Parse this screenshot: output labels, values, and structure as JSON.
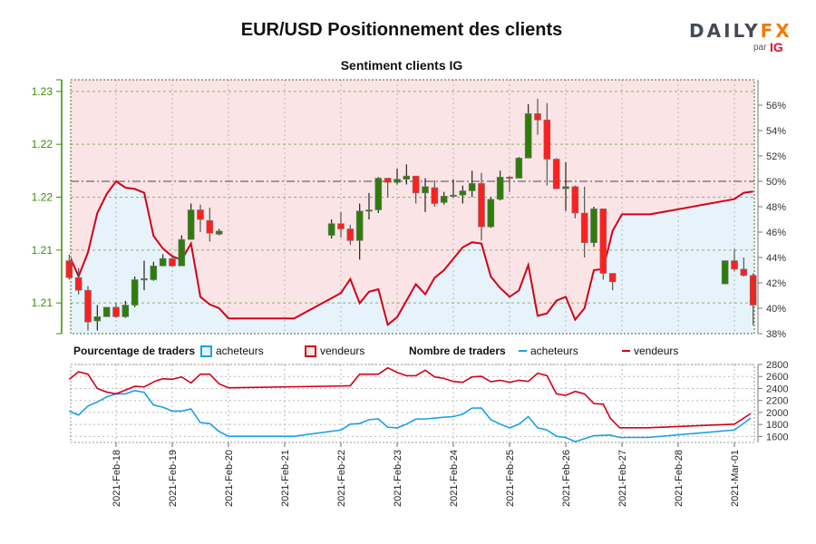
{
  "header": {
    "title": "EUR/USD Positionnement des clients",
    "subtitle": "Sentiment clients IG",
    "logo_text": "DAILYFX",
    "logo_sub": "par",
    "logo_brand": "IG"
  },
  "legend": {
    "pct_title": "Pourcentage de traders",
    "pct_buyers": "acheteurs",
    "pct_sellers": "vendeurs",
    "count_title": "Nombre de traders",
    "count_buyers": "acheteurs",
    "count_sellers": "vendeurs"
  },
  "colors": {
    "bull": "#2e7d0b",
    "bear": "#ff1f1f",
    "sentiment_line": "#d3001a",
    "buyers_fill": "#e6f3fb",
    "sellers_fill": "#fbe4e5",
    "buyers_line": "#1aa0e8",
    "sellers_line": "#d3001a",
    "price_axis": "#3c8c00"
  },
  "chart_data": [
    {
      "type": "candlestick",
      "title": "Sentiment clients IG",
      "x_unit": "hours since 2021-02-17 00:00",
      "price_axis": {
        "ticks": [
          1.225,
          1.22,
          1.215,
          1.21,
          1.205
        ],
        "tick_labels": [
          "1.23",
          "1.22",
          "1.22",
          "1.21",
          "1.21"
        ],
        "ylim": [
          1.2021,
          1.2261
        ]
      },
      "pct_axis": {
        "ticks": [
          56,
          54,
          52,
          50,
          48,
          46,
          44,
          42,
          40,
          38
        ],
        "tick_labels": [
          "56%",
          "54%",
          "52%",
          "50%",
          "48%",
          "46%",
          "44%",
          "42%",
          "40%",
          "38%"
        ],
        "ylim": [
          38,
          58
        ]
      },
      "reference_line_pct": 50,
      "x_tick_labels": [
        "2021-Feb-18",
        "2021-Feb-19",
        "2021-Feb-20",
        "2021-Feb-21",
        "2021-Feb-22",
        "2021-Feb-23",
        "2021-Feb-24",
        "2021-Feb-25",
        "2021-Feb-26",
        "2021-Feb-27",
        "2021-Feb-28",
        "2021-Mar-01"
      ],
      "candles_t_o_h_l_c": [
        [
          4,
          1.209,
          1.2096,
          1.2072,
          1.2074
        ],
        [
          8,
          1.2074,
          1.2083,
          1.2058,
          1.2062
        ],
        [
          12,
          1.2062,
          1.2066,
          1.2024,
          1.2032
        ],
        [
          16,
          1.2033,
          1.2048,
          1.2024,
          1.2037
        ],
        [
          20,
          1.2037,
          1.2046,
          1.2037,
          1.2046
        ],
        [
          24,
          1.2046,
          1.205,
          1.2036,
          1.2037
        ],
        [
          28,
          1.2037,
          1.2052,
          1.2036,
          1.2048
        ],
        [
          32,
          1.2048,
          1.2075,
          1.2046,
          1.2072
        ],
        [
          36,
          1.2072,
          1.209,
          1.2062,
          1.2073
        ],
        [
          40,
          1.2072,
          1.2089,
          1.2071,
          1.2085
        ],
        [
          44,
          1.2085,
          1.2096,
          1.2085,
          1.2092
        ],
        [
          48,
          1.2092,
          1.2096,
          1.2084,
          1.2085
        ],
        [
          52,
          1.2085,
          1.2114,
          1.2085,
          1.211
        ],
        [
          56,
          1.211,
          1.2144,
          1.211,
          1.2138
        ],
        [
          60,
          1.2138,
          1.2143,
          1.2117,
          1.2129
        ],
        [
          64,
          1.2128,
          1.214,
          1.2108,
          1.2116
        ],
        [
          68,
          1.2115,
          1.212,
          1.2114,
          1.2118
        ],
        [
          116,
          1.2114,
          1.2129,
          1.2111,
          1.2125
        ],
        [
          120,
          1.2125,
          1.2136,
          1.2112,
          1.212
        ],
        [
          124,
          1.212,
          1.2124,
          1.2105,
          1.2109
        ],
        [
          128,
          1.2109,
          1.2144,
          1.2091,
          1.2137
        ],
        [
          132,
          1.2137,
          1.2154,
          1.2129,
          1.2138
        ],
        [
          136,
          1.2138,
          1.2169,
          1.2135,
          1.2168
        ],
        [
          140,
          1.2168,
          1.2168,
          1.215,
          1.2164
        ],
        [
          144,
          1.2164,
          1.2177,
          1.2162,
          1.2167
        ],
        [
          148,
          1.2167,
          1.2181,
          1.2162,
          1.217
        ],
        [
          152,
          1.217,
          1.217,
          1.2144,
          1.2154
        ],
        [
          156,
          1.2154,
          1.2168,
          1.2136,
          1.216
        ],
        [
          160,
          1.2159,
          1.2166,
          1.2141,
          1.2144
        ],
        [
          164,
          1.2145,
          1.2155,
          1.2143,
          1.2151
        ],
        [
          168,
          1.2151,
          1.2167,
          1.215,
          1.2152
        ],
        [
          172,
          1.2152,
          1.2161,
          1.2144,
          1.2156
        ],
        [
          176,
          1.2156,
          1.2175,
          1.215,
          1.2163
        ],
        [
          180,
          1.2163,
          1.2173,
          1.2109,
          1.2122
        ],
        [
          184,
          1.2122,
          1.215,
          1.2121,
          1.2148
        ],
        [
          188,
          1.2148,
          1.2175,
          1.2147,
          1.2169
        ],
        [
          192,
          1.2169,
          1.217,
          1.2155,
          1.2168
        ],
        [
          196,
          1.2168,
          1.2188,
          1.2168,
          1.2187
        ],
        [
          200,
          1.2187,
          1.2238,
          1.2187,
          1.2229
        ],
        [
          204,
          1.2229,
          1.2243,
          1.2209,
          1.2223
        ],
        [
          208,
          1.2223,
          1.2239,
          1.2161,
          1.2186
        ],
        [
          212,
          1.2186,
          1.2187,
          1.2158,
          1.2158
        ],
        [
          216,
          1.2158,
          1.2183,
          1.2137,
          1.216
        ],
        [
          220,
          1.216,
          1.2161,
          1.213,
          1.2135
        ],
        [
          224,
          1.2135,
          1.216,
          1.2093,
          1.2107
        ],
        [
          228,
          1.2107,
          1.2141,
          1.2103,
          1.2139
        ],
        [
          232,
          1.2139,
          1.2139,
          1.2072,
          1.2078
        ],
        [
          236,
          1.2078,
          1.2078,
          1.2062,
          1.207
        ],
        [
          284,
          1.2068,
          1.209,
          1.2068,
          1.209
        ],
        [
          288,
          1.209,
          1.2101,
          1.208,
          1.2082
        ],
        [
          292,
          1.2082,
          1.2093,
          1.2075,
          1.2076
        ],
        [
          296,
          1.2076,
          1.2078,
          1.2029,
          1.2048
        ]
      ],
      "buyers_pct_t_v": [
        [
          4,
          44.2
        ],
        [
          8,
          42.5
        ],
        [
          12,
          44.4
        ],
        [
          16,
          47.5
        ],
        [
          20,
          49.0
        ],
        [
          24,
          50.0
        ],
        [
          28,
          49.5
        ],
        [
          32,
          49.4
        ],
        [
          36,
          49.1
        ],
        [
          40,
          45.7
        ],
        [
          44,
          44.7
        ],
        [
          48,
          44.1
        ],
        [
          52,
          43.8
        ],
        [
          56,
          45.1
        ],
        [
          60,
          40.9
        ],
        [
          64,
          40.3
        ],
        [
          68,
          40.0
        ],
        [
          72,
          39.2
        ],
        [
          100,
          39.2
        ],
        [
          120,
          41.2
        ],
        [
          124,
          42.3
        ],
        [
          128,
          40.4
        ],
        [
          132,
          41.3
        ],
        [
          136,
          41.5
        ],
        [
          140,
          38.7
        ],
        [
          144,
          39.3
        ],
        [
          148,
          40.6
        ],
        [
          152,
          41.9
        ],
        [
          156,
          41.1
        ],
        [
          160,
          42.4
        ],
        [
          164,
          43.0
        ],
        [
          168,
          43.9
        ],
        [
          172,
          44.8
        ],
        [
          176,
          45.2
        ],
        [
          180,
          45.1
        ],
        [
          184,
          42.5
        ],
        [
          188,
          41.6
        ],
        [
          192,
          40.9
        ],
        [
          196,
          41.4
        ],
        [
          200,
          43.4
        ],
        [
          204,
          39.4
        ],
        [
          208,
          39.6
        ],
        [
          212,
          40.6
        ],
        [
          216,
          40.9
        ],
        [
          220,
          39.1
        ],
        [
          224,
          40.0
        ],
        [
          228,
          43.0
        ],
        [
          232,
          43.1
        ],
        [
          236,
          46.1
        ],
        [
          240,
          47.4
        ],
        [
          252,
          47.4
        ],
        [
          288,
          48.6
        ],
        [
          292,
          49.1
        ],
        [
          296,
          49.2
        ]
      ]
    },
    {
      "type": "line",
      "title": "Nombre de traders",
      "x_unit": "hours since 2021-02-17 00:00",
      "y_ticks": [
        2800,
        2600,
        2400,
        2200,
        2000,
        1800,
        1600
      ],
      "y_tick_labels": [
        "2800",
        "2600",
        "2400",
        "2200",
        "2000",
        "1800",
        "1600"
      ],
      "ylim": [
        1500,
        2800
      ],
      "series": [
        {
          "name": "acheteurs",
          "points": [
            [
              4,
              2023
            ],
            [
              8,
              1957
            ],
            [
              12,
              2108
            ],
            [
              16,
              2174
            ],
            [
              20,
              2259
            ],
            [
              24,
              2310
            ],
            [
              28,
              2310
            ],
            [
              32,
              2365
            ],
            [
              36,
              2335
            ],
            [
              40,
              2123
            ],
            [
              44,
              2088
            ],
            [
              48,
              2023
            ],
            [
              52,
              2023
            ],
            [
              56,
              2058
            ],
            [
              60,
              1830
            ],
            [
              64,
              1815
            ],
            [
              68,
              1683
            ],
            [
              72,
              1603
            ],
            [
              100,
              1603
            ],
            [
              120,
              1708
            ],
            [
              124,
              1805
            ],
            [
              128,
              1815
            ],
            [
              132,
              1880
            ],
            [
              136,
              1891
            ],
            [
              140,
              1753
            ],
            [
              144,
              1743
            ],
            [
              148,
              1805
            ],
            [
              152,
              1891
            ],
            [
              156,
              1891
            ],
            [
              160,
              1906
            ],
            [
              164,
              1921
            ],
            [
              168,
              1931
            ],
            [
              172,
              1971
            ],
            [
              176,
              2073
            ],
            [
              180,
              2073
            ],
            [
              184,
              1880
            ],
            [
              188,
              1805
            ],
            [
              192,
              1743
            ],
            [
              196,
              1805
            ],
            [
              200,
              1931
            ],
            [
              204,
              1743
            ],
            [
              208,
              1708
            ],
            [
              212,
              1603
            ],
            [
              216,
              1583
            ],
            [
              220,
              1513
            ],
            [
              224,
              1563
            ],
            [
              228,
              1613
            ],
            [
              235,
              1623
            ],
            [
              239,
              1583
            ],
            [
              251,
              1583
            ],
            [
              288,
              1708
            ],
            [
              295,
              1906
            ]
          ]
        },
        {
          "name": "vendeurs",
          "points": [
            [
              4,
              2553
            ],
            [
              8,
              2679
            ],
            [
              12,
              2638
            ],
            [
              16,
              2400
            ],
            [
              20,
              2340
            ],
            [
              24,
              2310
            ],
            [
              32,
              2436
            ],
            [
              36,
              2426
            ],
            [
              41,
              2527
            ],
            [
              44,
              2563
            ],
            [
              48,
              2553
            ],
            [
              52,
              2593
            ],
            [
              56,
              2492
            ],
            [
              60,
              2638
            ],
            [
              64,
              2638
            ],
            [
              68,
              2477
            ],
            [
              72,
              2411
            ],
            [
              120,
              2441
            ],
            [
              124,
              2446
            ],
            [
              128,
              2638
            ],
            [
              136,
              2638
            ],
            [
              140,
              2744
            ],
            [
              144,
              2668
            ],
            [
              148,
              2613
            ],
            [
              152,
              2613
            ],
            [
              156,
              2704
            ],
            [
              160,
              2593
            ],
            [
              164,
              2568
            ],
            [
              168,
              2517
            ],
            [
              172,
              2502
            ],
            [
              176,
              2593
            ],
            [
              180,
              2603
            ],
            [
              184,
              2512
            ],
            [
              188,
              2537
            ],
            [
              192,
              2502
            ],
            [
              196,
              2537
            ],
            [
              200,
              2517
            ],
            [
              204,
              2654
            ],
            [
              208,
              2613
            ],
            [
              212,
              2310
            ],
            [
              216,
              2285
            ],
            [
              220,
              2351
            ],
            [
              224,
              2310
            ],
            [
              228,
              2148
            ],
            [
              232,
              2138
            ],
            [
              235,
              1906
            ],
            [
              239,
              1744
            ],
            [
              251,
              1744
            ],
            [
              288,
              1805
            ],
            [
              295,
              1982
            ]
          ]
        }
      ]
    }
  ]
}
